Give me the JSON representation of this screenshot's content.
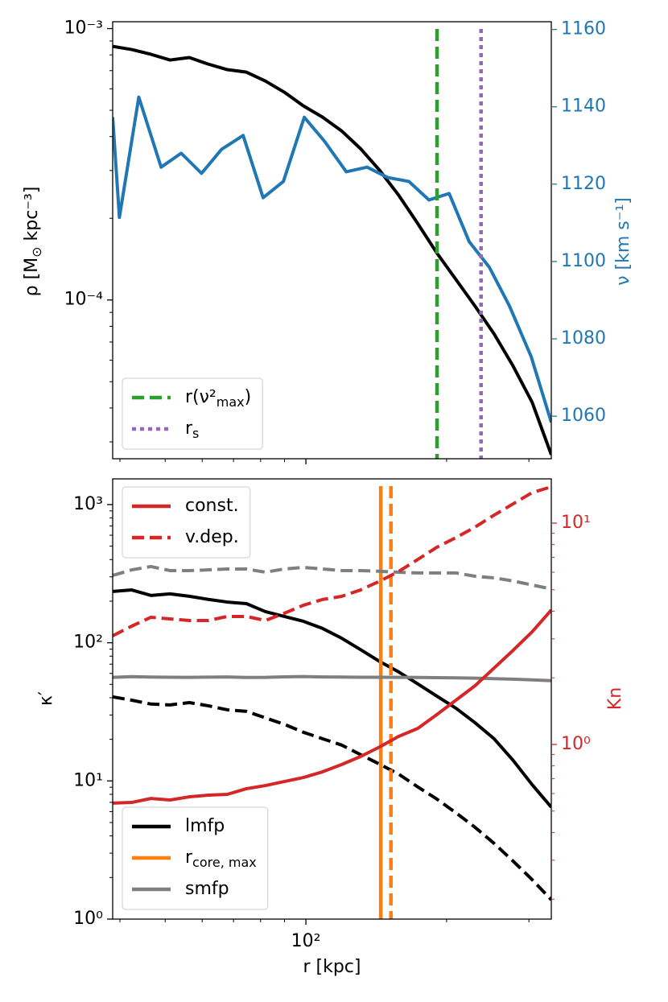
{
  "chart_data": [
    {
      "type": "line",
      "xlog": true,
      "xlim": [
        38.6,
        335
      ],
      "xticks": [
        100
      ],
      "xminorticks": [
        40,
        50,
        60,
        70,
        80,
        90,
        200,
        300
      ],
      "ylog": true,
      "ylim": [
        2.6e-05,
        0.00106
      ],
      "yticks": [
        {
          "value": 0.0001,
          "label": "10⁻⁴"
        },
        {
          "value": 0.001,
          "label": "10⁻³"
        }
      ],
      "yminorticks": [
        3e-05,
        4e-05,
        5e-05,
        6e-05,
        7e-05,
        8e-05,
        9e-05,
        0.0002,
        0.0003,
        0.0004,
        0.0005,
        0.0006,
        0.0007,
        0.0008,
        0.0009
      ],
      "ylabel": "ρ [M⊙ kpc⁻³]",
      "y2lim": [
        1049,
        1162
      ],
      "y2ticks": [
        1060,
        1080,
        1100,
        1120,
        1140,
        1160
      ],
      "y2color": "#1f77b4",
      "y2label": "ν [km s⁻¹]",
      "x": [
        38.6,
        42.4,
        46.6,
        51.2,
        56.3,
        61.8,
        67.9,
        74.6,
        81.9,
        89.9,
        98.8,
        108.5,
        119.2,
        130.9,
        143.9,
        158.0,
        173.6,
        190.6,
        209.4,
        230.0,
        252.7,
        277.5,
        304.8,
        335
      ],
      "series": [
        {
          "color": "#000000",
          "style": "solid",
          "values": [
            0.00086,
            0.000837,
            0.000804,
            0.000766,
            0.000782,
            0.00074,
            0.000706,
            0.000691,
            0.000641,
            0.000583,
            0.000519,
            0.000472,
            0.00042,
            0.000361,
            0.0003,
            0.000243,
            0.000191,
            0.000149,
            0.000119,
            9.5e-05,
            7.5e-05,
            5.71e-05,
            4.2e-05,
            2.69e-05
          ]
        },
        {
          "color": "#1f77b4",
          "style": "solid",
          "axis": "y2",
          "x": [
            38.6,
            39.9,
            43.9,
            49.0,
            54.1,
            59.8,
            66.0,
            73.4,
            81.0,
            89.5,
            99.2,
            109.6,
            122.0,
            135.2,
            149.8,
            166.1,
            183.4,
            202.5,
            223.6,
            246.9,
            272.6,
            303.4,
            335
          ],
          "values": [
            1137.3,
            1111.4,
            1142.5,
            1124.4,
            1128.0,
            1122.8,
            1129.0,
            1132.6,
            1116.5,
            1120.7,
            1137.3,
            1131.1,
            1123.2,
            1124.4,
            1121.7,
            1120.7,
            1115.9,
            1117.6,
            1105.1,
            1098.5,
            1088.5,
            1075.4,
            1058.4
          ]
        },
        {
          "name": "r(ν²max)",
          "color": "#2ca02c",
          "style": "dashed",
          "xline": 190.8,
          "legend": "lower left"
        },
        {
          "name": "rs",
          "color": "#9467bd",
          "style": "dotted",
          "xline": 237,
          "legend": "lower left"
        }
      ]
    },
    {
      "type": "line",
      "xlog": true,
      "xlim": [
        38.6,
        335
      ],
      "xticks": [
        {
          "value": 100,
          "label": "10²"
        }
      ],
      "xminorticks": [
        40,
        50,
        60,
        70,
        80,
        90,
        200,
        300
      ],
      "xlabel": "r [kpc]",
      "ylog": true,
      "ylim": [
        1,
        1535
      ],
      "yticks": [
        {
          "value": 1,
          "label": "10⁰"
        },
        {
          "value": 10,
          "label": "10¹"
        },
        {
          "value": 100,
          "label": "10²"
        },
        {
          "value": 1000,
          "label": "10³"
        }
      ],
      "yminorticks": [
        2,
        3,
        4,
        5,
        6,
        7,
        8,
        9,
        20,
        30,
        40,
        50,
        60,
        70,
        80,
        90,
        200,
        300,
        400,
        500,
        600,
        700,
        800,
        900
      ],
      "ylabel": "κ′",
      "y2log": true,
      "y2lim": [
        0.1625,
        15.85
      ],
      "y2ticks": [
        {
          "value": 1,
          "label": "10⁰"
        },
        {
          "value": 10,
          "label": "10¹"
        }
      ],
      "y2minorticks": [
        0.2,
        0.3,
        0.4,
        0.5,
        0.6,
        0.7,
        0.8,
        0.9,
        2,
        3,
        4,
        5,
        6,
        7,
        8,
        9
      ],
      "y2color": "#d62728",
      "y2label": "Kn",
      "x": [
        38.6,
        42.4,
        46.6,
        51.2,
        56.3,
        61.8,
        67.9,
        74.6,
        81.9,
        89.9,
        98.8,
        108.5,
        119.2,
        130.9,
        143.9,
        158.0,
        173.6,
        190.6,
        209.4,
        230.0,
        252.7,
        277.5,
        304.8,
        335
      ],
      "series": [
        {
          "name": "lmfp",
          "color": "#000000",
          "style": "solid",
          "legend": "lower left",
          "values": [
            235,
            241,
            220,
            226,
            217,
            206,
            197,
            192,
            168,
            155,
            143,
            127,
            108,
            89.2,
            73.1,
            61.5,
            50.3,
            41.1,
            33.6,
            26.4,
            20.2,
            14.1,
            9.4,
            6.46
          ]
        },
        {
          "color": "#000000",
          "style": "dashed",
          "values": [
            40.6,
            38.4,
            36.0,
            35.5,
            36.9,
            35.0,
            32.7,
            31.9,
            28.6,
            25.7,
            22.5,
            20.2,
            18.2,
            15.5,
            13.2,
            11.2,
            9.04,
            7.39,
            5.88,
            4.62,
            3.53,
            2.63,
            1.93,
            1.38
          ]
        },
        {
          "name": "rcore, max",
          "color": "#ff7f0e",
          "style": "solid",
          "xline": 144.6,
          "legend": "lower left"
        },
        {
          "color": "#ff7f0e",
          "style": "dashed",
          "xline": 152
        },
        {
          "name": "smfp",
          "color": "#7f7f7f",
          "style": "solid",
          "legend": "lower left",
          "values": [
            56.2,
            56.8,
            56.5,
            56.3,
            56.2,
            56.4,
            56.6,
            56.1,
            56.2,
            56.7,
            56.9,
            56.6,
            56.5,
            56.3,
            56.3,
            56.2,
            56.1,
            55.9,
            55.7,
            55.4,
            55.0,
            54.5,
            53.9,
            53.2
          ]
        },
        {
          "color": "#7f7f7f",
          "style": "dashed",
          "values": [
            307,
            337,
            356,
            333,
            333,
            337,
            342,
            342,
            324,
            342,
            351,
            342,
            333,
            333,
            329,
            324,
            320,
            320,
            320,
            303,
            295,
            280,
            262,
            245
          ]
        },
        {
          "name": "const.",
          "color": "#d62728",
          "style": "solid",
          "axis": "y2",
          "legend": "upper left",
          "values": [
            0.543,
            0.547,
            0.57,
            0.561,
            0.58,
            0.59,
            0.595,
            0.631,
            0.652,
            0.68,
            0.709,
            0.752,
            0.811,
            0.882,
            0.975,
            1.088,
            1.182,
            1.364,
            1.585,
            1.841,
            2.214,
            2.661,
            3.228,
            4.048
          ]
        },
        {
          "name": "v.dep.",
          "color": "#d62728",
          "style": "dashed",
          "axis": "y2",
          "legend": "upper left",
          "values": [
            3.097,
            3.424,
            3.755,
            3.693,
            3.631,
            3.631,
            3.788,
            3.788,
            3.631,
            3.915,
            4.256,
            4.519,
            4.667,
            4.989,
            5.47,
            6.05,
            6.86,
            7.78,
            8.6,
            9.59,
            10.87,
            12.22,
            13.74,
            14.58
          ]
        }
      ]
    }
  ]
}
